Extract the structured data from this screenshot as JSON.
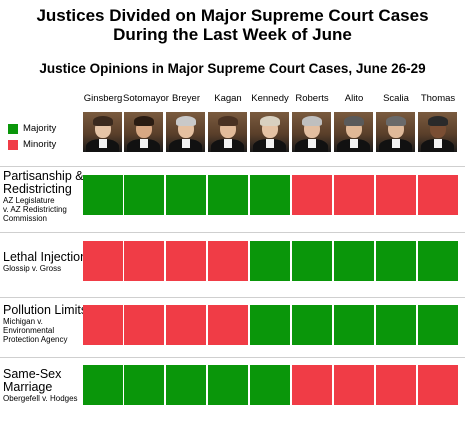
{
  "title_line_1": "Justices Divided on Major Supreme Court Cases",
  "title_line_2": "During the Last Week of June",
  "subtitle": "Justice Opinions in Major Supreme Court Cases, June 26-29",
  "legend": [
    {
      "label": "Majority",
      "color": "#0a960a"
    },
    {
      "label": "Minority",
      "color": "#f03c46"
    }
  ],
  "chart_data": {
    "type": "heatmap",
    "columns": [
      "Ginsberg",
      "Sotomayor",
      "Breyer",
      "Kagan",
      "Kennedy",
      "Roberts",
      "Alito",
      "Scalia",
      "Thomas"
    ],
    "rows": [
      {
        "title_lines": [
          "Partisanship &",
          "Redistricting"
        ],
        "sub_lines": [
          "AZ Legislature",
          "v. AZ Redistricting",
          "Commission"
        ],
        "values": [
          "Majority",
          "Majority",
          "Majority",
          "Majority",
          "Majority",
          "Minority",
          "Minority",
          "Minority",
          "Minority"
        ]
      },
      {
        "title_lines": [
          "Lethal Injection"
        ],
        "sub_lines": [
          "Glossip v. Gross"
        ],
        "values": [
          "Minority",
          "Minority",
          "Minority",
          "Minority",
          "Majority",
          "Majority",
          "Majority",
          "Majority",
          "Majority"
        ]
      },
      {
        "title_lines": [
          "Pollution Limits"
        ],
        "sub_lines": [
          "Michigan v.",
          "Environmental",
          "Protection Agency"
        ],
        "values": [
          "Minority",
          "Minority",
          "Minority",
          "Minority",
          "Majority",
          "Majority",
          "Majority",
          "Majority",
          "Majority"
        ]
      },
      {
        "title_lines": [
          "Same-Sex",
          "Marriage"
        ],
        "sub_lines": [
          "Obergefell v. Hodges"
        ],
        "values": [
          "Majority",
          "Majority",
          "Majority",
          "Majority",
          "Majority",
          "Minority",
          "Minority",
          "Minority",
          "Minority"
        ]
      }
    ]
  }
}
